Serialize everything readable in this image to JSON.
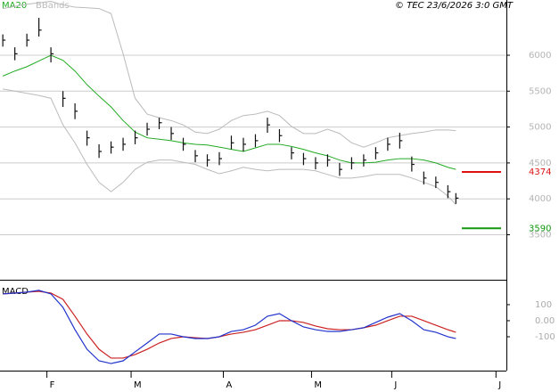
{
  "chart_data": {
    "type": "ohlc",
    "header": "© TEC 23/6/2026 3:0 GMT",
    "legend": {
      "ma": "MA20",
      "bb": "BBands"
    },
    "colors": {
      "bars": "#111111",
      "ma": "#22aa22",
      "bb": "#bbbbbb",
      "macd": "#2233cc",
      "signal": "#cc2222",
      "grid": "#cccccc"
    },
    "xlim": [
      -0.7,
      125.6
    ],
    "xticks": [
      {
        "value": 11,
        "label": "F"
      },
      {
        "value": 32,
        "label": "M"
      },
      {
        "value": 55,
        "label": "A"
      },
      {
        "value": 77,
        "label": "M"
      },
      {
        "value": 97,
        "label": "J"
      },
      {
        "value": 123,
        "label": "J"
      }
    ],
    "ylim": [
      2886,
      6769
    ],
    "yticks": [
      3500,
      4000,
      4500,
      5000,
      5500,
      6000
    ],
    "grid": true,
    "x": [
      0,
      3,
      6,
      9,
      12,
      15,
      18,
      21,
      24,
      27,
      30,
      33,
      36,
      39,
      42,
      45,
      48,
      51,
      54,
      57,
      60,
      63,
      66,
      69,
      72,
      75,
      78,
      81,
      84,
      87,
      90,
      93,
      96,
      99,
      102,
      105,
      108,
      111,
      113
    ],
    "high": [
      6290,
      6110,
      6300,
      6520,
      6110,
      5500,
      5330,
      4950,
      4760,
      4800,
      4850,
      4950,
      5060,
      5130,
      5000,
      4850,
      4680,
      4620,
      4650,
      4880,
      4850,
      4900,
      5130,
      4970,
      4720,
      4640,
      4580,
      4620,
      4500,
      4580,
      4620,
      4720,
      4850,
      4920,
      4590,
      4380,
      4310,
      4190,
      4080
    ],
    "low": [
      6120,
      5930,
      6120,
      6260,
      5900,
      5280,
      5110,
      4740,
      4570,
      4630,
      4670,
      4760,
      4880,
      4970,
      4820,
      4670,
      4510,
      4450,
      4470,
      4690,
      4660,
      4720,
      4920,
      4790,
      4550,
      4470,
      4410,
      4450,
      4320,
      4410,
      4450,
      4550,
      4670,
      4700,
      4380,
      4200,
      4150,
      4010,
      3930
    ],
    "close": [
      6210,
      6020,
      6210,
      6350,
      6020,
      5400,
      5220,
      4850,
      4660,
      4720,
      4760,
      4850,
      4970,
      5060,
      4910,
      4760,
      4600,
      4540,
      4560,
      4780,
      4760,
      4810,
      5030,
      4880,
      4640,
      4560,
      4500,
      4540,
      4410,
      4500,
      4540,
      4640,
      4760,
      4810,
      4480,
      4290,
      4230,
      4100,
      4010
    ],
    "ma20": [
      5710,
      5780,
      5840,
      5920,
      6000,
      5930,
      5780,
      5590,
      5430,
      5280,
      5090,
      4930,
      4850,
      4830,
      4810,
      4780,
      4760,
      4750,
      4720,
      4690,
      4660,
      4710,
      4760,
      4760,
      4730,
      4690,
      4640,
      4600,
      4540,
      4500,
      4500,
      4510,
      4540,
      4560,
      4560,
      4540,
      4500,
      4440,
      4410
    ],
    "bb_upper": [
      6650,
      6680,
      6710,
      6730,
      6750,
      6700,
      6670,
      6660,
      6650,
      6580,
      6020,
      5400,
      5180,
      5130,
      5090,
      5030,
      4930,
      4910,
      4970,
      5090,
      5160,
      5180,
      5220,
      5160,
      5010,
      4910,
      4910,
      4970,
      4910,
      4780,
      4720,
      4780,
      4850,
      4880,
      4910,
      4930,
      4960,
      4960,
      4950
    ],
    "bb_lower": [
      5530,
      5500,
      5470,
      5440,
      5400,
      5030,
      4780,
      4480,
      4230,
      4100,
      4230,
      4410,
      4510,
      4540,
      4540,
      4510,
      4480,
      4410,
      4350,
      4390,
      4440,
      4410,
      4390,
      4410,
      4410,
      4410,
      4390,
      4340,
      4290,
      4290,
      4310,
      4340,
      4340,
      4340,
      4290,
      4230,
      4170,
      4040,
      3920
    ],
    "levels": [
      {
        "value": 4374,
        "color": "#dd1111"
      },
      {
        "value": 3590,
        "color": "#119911"
      }
    ],
    "macd": {
      "title": "MACD",
      "ylim": [
        -311,
        244
      ],
      "yticks": [
        100,
        {
          "value": 0,
          "label": "0.00"
        },
        -100
      ],
      "macd": [
        167,
        172,
        178,
        189,
        167,
        83,
        -56,
        -178,
        -250,
        -267,
        -250,
        -194,
        -139,
        -83,
        -83,
        -100,
        -111,
        -111,
        -100,
        -67,
        -56,
        -28,
        28,
        44,
        0,
        -39,
        -56,
        -67,
        -67,
        -56,
        -44,
        -11,
        22,
        44,
        0,
        -56,
        -72,
        -100,
        -111
      ],
      "signal": [
        167,
        172,
        178,
        183,
        172,
        133,
        28,
        -83,
        -178,
        -233,
        -233,
        -211,
        -178,
        -139,
        -111,
        -100,
        -106,
        -111,
        -100,
        -83,
        -72,
        -56,
        -28,
        0,
        0,
        -11,
        -33,
        -50,
        -56,
        -56,
        -44,
        -28,
        0,
        28,
        28,
        0,
        -28,
        -56,
        -72
      ]
    }
  }
}
